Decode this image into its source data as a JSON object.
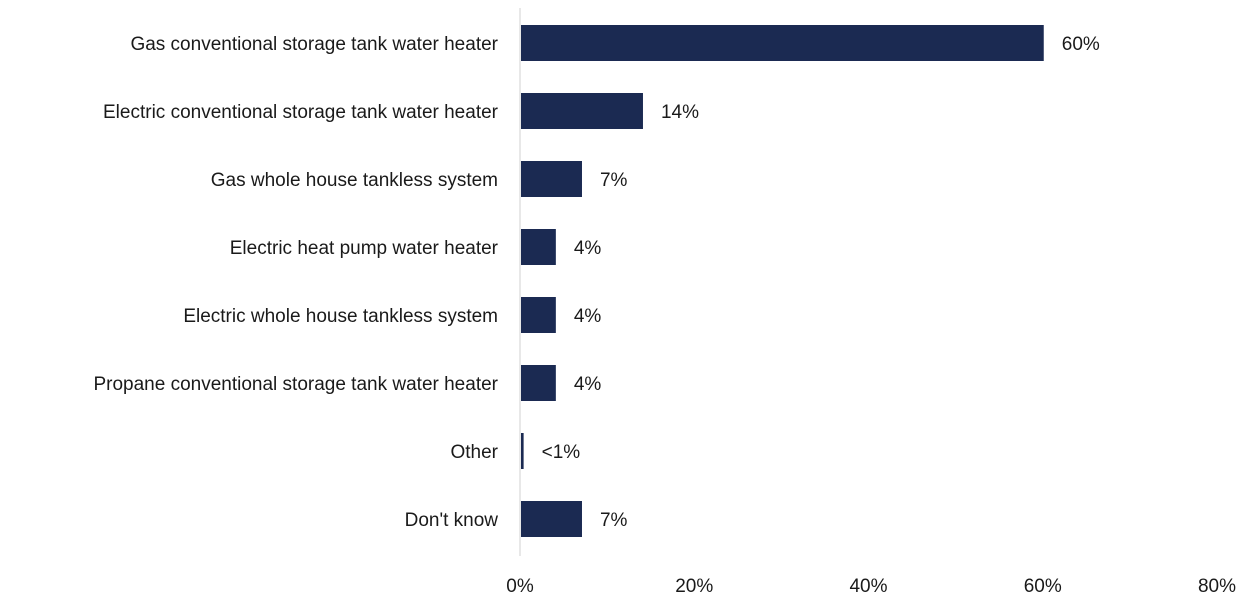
{
  "chart_data": {
    "type": "bar",
    "orientation": "horizontal",
    "title": "",
    "xlabel": "",
    "ylabel": "",
    "categories": [
      "Gas conventional storage tank water heater",
      "Electric conventional storage tank water heater",
      "Gas whole house tankless system",
      "Electric heat pump water heater",
      "Electric whole house tankless system",
      "Propane conventional storage tank water heater",
      "Other",
      "Don't know"
    ],
    "values": [
      60,
      14,
      7,
      4,
      4,
      4,
      0.3,
      7
    ],
    "data_labels": [
      "60%",
      "14%",
      "7%",
      "4%",
      "4%",
      "4%",
      "<1%",
      "7%"
    ],
    "xlim": [
      0,
      80
    ],
    "x_ticks": [
      "0%",
      "20%",
      "40%",
      "60%",
      "80%"
    ],
    "grid": false,
    "legend": "none",
    "bar_color": "#1b2a52",
    "axis_color": "#d9d9d9"
  }
}
